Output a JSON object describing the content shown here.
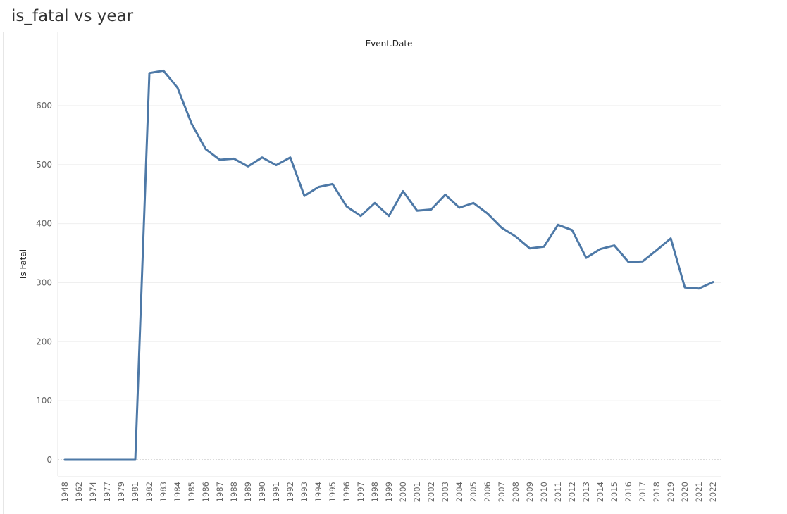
{
  "sheet": {
    "title": "is_fatal vs year"
  },
  "chart_data": {
    "type": "line",
    "title": "Event.Date",
    "xlabel": "Event.Date",
    "ylabel": "Is Fatal",
    "ylim": [
      -30,
      680
    ],
    "yticks": [
      0,
      100,
      200,
      300,
      400,
      500,
      600
    ],
    "grid": true,
    "line_color": "#4e79a7",
    "categories": [
      "1948",
      "1962",
      "1974",
      "1977",
      "1979",
      "1981",
      "1982",
      "1983",
      "1984",
      "1985",
      "1986",
      "1987",
      "1988",
      "1989",
      "1990",
      "1991",
      "1992",
      "1993",
      "1994",
      "1995",
      "1996",
      "1997",
      "1998",
      "1999",
      "2000",
      "2001",
      "2002",
      "2003",
      "2004",
      "2005",
      "2006",
      "2007",
      "2008",
      "2009",
      "2010",
      "2011",
      "2012",
      "2013",
      "2014",
      "2015",
      "2016",
      "2017",
      "2018",
      "2019",
      "2020",
      "2021",
      "2022"
    ],
    "series": [
      {
        "values": [
          0,
          0,
          0,
          0,
          0,
          0,
          655,
          659,
          630,
          569,
          526,
          508,
          510,
          497,
          512,
          499,
          512,
          447,
          462,
          467,
          429,
          413,
          435,
          413,
          455,
          422,
          424,
          449,
          427,
          435,
          417,
          393,
          378,
          358,
          361,
          398,
          389,
          342,
          357,
          363,
          335,
          336,
          355,
          375,
          292,
          290,
          301
        ]
      }
    ]
  }
}
